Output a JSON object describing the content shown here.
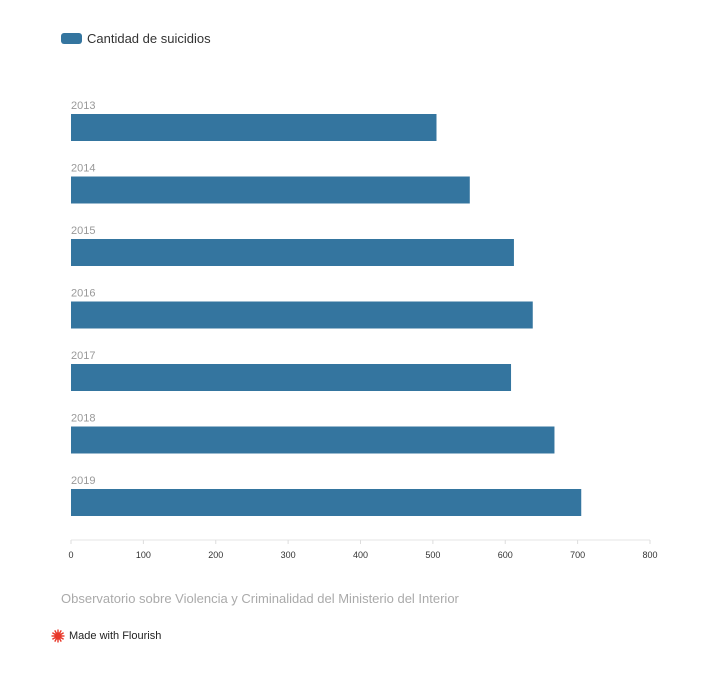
{
  "legend": {
    "label": "Cantidad de suicidios",
    "color": "#34759f"
  },
  "source": "Observatorio sobre Violencia y Criminalidad del Ministerio del Interior",
  "footer": {
    "label": "Made with Flourish",
    "icon": "flourish-logo-icon",
    "icon_color": "#e8382a"
  },
  "chart_data": {
    "type": "bar",
    "orientation": "horizontal",
    "categories": [
      "2013",
      "2014",
      "2015",
      "2016",
      "2017",
      "2018",
      "2019"
    ],
    "series": [
      {
        "name": "Cantidad de suicidios",
        "values": [
          505,
          551,
          612,
          638,
          608,
          668,
          705
        ]
      }
    ],
    "xlim": [
      0,
      800
    ],
    "xticks": [
      0,
      100,
      200,
      300,
      400,
      500,
      600,
      700,
      800
    ],
    "legend_position": "top-left",
    "grid": false,
    "bar_color": "#34759f"
  }
}
